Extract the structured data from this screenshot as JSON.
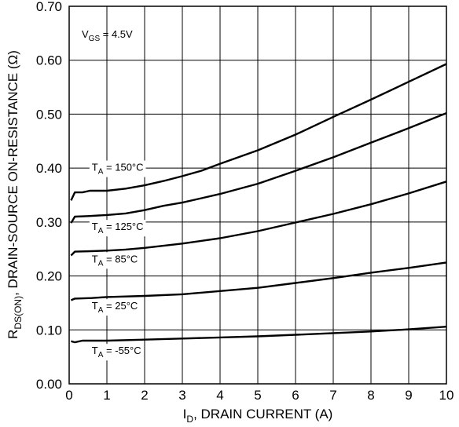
{
  "chart_data": {
    "type": "line",
    "xlabel": {
      "main": "I",
      "sub": "D",
      "rest": ", DRAIN CURRENT (A)"
    },
    "ylabel": {
      "main": "R",
      "sub": "DS(ON)",
      "rest": ", DRAIN-SOURCE ON-RESISTANCE (Ω)"
    },
    "condition": {
      "main": "V",
      "sub": "GS",
      "rest": " = 4.5V"
    },
    "xlim": [
      0,
      10
    ],
    "ylim": [
      0,
      0.7
    ],
    "x_ticks": [
      "0",
      "1",
      "2",
      "3",
      "4",
      "5",
      "6",
      "7",
      "8",
      "9",
      "10"
    ],
    "y_ticks": [
      "0.00",
      "0.10",
      "0.20",
      "0.30",
      "0.40",
      "0.50",
      "0.60",
      "0.70"
    ],
    "grid": true,
    "series": [
      {
        "name": {
          "main": "T",
          "sub": "A",
          "rest": " = 150°C"
        },
        "label_at": [
          0.6,
          0.395
        ],
        "points": [
          [
            0.05,
            0.34
          ],
          [
            0.15,
            0.355
          ],
          [
            0.35,
            0.355
          ],
          [
            0.55,
            0.358
          ],
          [
            1,
            0.358
          ],
          [
            1.5,
            0.362
          ],
          [
            2,
            0.368
          ],
          [
            2.5,
            0.376
          ],
          [
            3,
            0.385
          ],
          [
            3.5,
            0.395
          ],
          [
            4,
            0.408
          ],
          [
            5,
            0.433
          ],
          [
            6,
            0.462
          ],
          [
            7,
            0.495
          ],
          [
            8,
            0.527
          ],
          [
            9,
            0.56
          ],
          [
            10,
            0.593
          ]
        ]
      },
      {
        "name": {
          "main": "T",
          "sub": "A",
          "rest": " = 125°C"
        },
        "label_at": [
          0.6,
          0.285
        ],
        "points": [
          [
            0.05,
            0.298
          ],
          [
            0.15,
            0.31
          ],
          [
            0.5,
            0.311
          ],
          [
            1,
            0.313
          ],
          [
            1.5,
            0.316
          ],
          [
            2,
            0.322
          ],
          [
            2.5,
            0.33
          ],
          [
            3,
            0.336
          ],
          [
            4,
            0.352
          ],
          [
            5,
            0.371
          ],
          [
            6,
            0.395
          ],
          [
            7,
            0.42
          ],
          [
            8,
            0.447
          ],
          [
            9,
            0.474
          ],
          [
            10,
            0.502
          ]
        ]
      },
      {
        "name": {
          "main": "T",
          "sub": "A",
          "rest": " = 85°C"
        },
        "label_at": [
          0.6,
          0.225
        ],
        "points": [
          [
            0.05,
            0.238
          ],
          [
            0.15,
            0.245
          ],
          [
            0.6,
            0.246
          ],
          [
            1,
            0.247
          ],
          [
            1.5,
            0.249
          ],
          [
            2,
            0.252
          ],
          [
            2.5,
            0.256
          ],
          [
            3,
            0.26
          ],
          [
            4,
            0.27
          ],
          [
            5,
            0.283
          ],
          [
            6,
            0.299
          ],
          [
            7,
            0.315
          ],
          [
            8,
            0.333
          ],
          [
            9,
            0.353
          ],
          [
            10,
            0.375
          ]
        ]
      },
      {
        "name": {
          "main": "T",
          "sub": "A",
          "rest": " = 25°C"
        },
        "label_at": [
          0.6,
          0.138
        ],
        "points": [
          [
            0.05,
            0.155
          ],
          [
            0.15,
            0.158
          ],
          [
            0.6,
            0.159
          ],
          [
            1,
            0.161
          ],
          [
            2,
            0.163
          ],
          [
            3,
            0.166
          ],
          [
            4,
            0.172
          ],
          [
            5,
            0.178
          ],
          [
            6,
            0.187
          ],
          [
            7,
            0.196
          ],
          [
            8,
            0.206
          ],
          [
            9,
            0.215
          ],
          [
            10,
            0.225
          ]
        ]
      },
      {
        "name": {
          "main": "T",
          "sub": "A",
          "rest": " = -55°C"
        },
        "label_at": [
          0.6,
          0.055
        ],
        "points": [
          [
            0.05,
            0.079
          ],
          [
            0.15,
            0.077
          ],
          [
            0.35,
            0.08
          ],
          [
            1,
            0.08
          ],
          [
            2,
            0.082
          ],
          [
            3,
            0.084
          ],
          [
            4,
            0.086
          ],
          [
            5,
            0.088
          ],
          [
            6,
            0.091
          ],
          [
            7,
            0.094
          ],
          [
            8,
            0.097
          ],
          [
            9,
            0.101
          ],
          [
            10,
            0.106
          ]
        ]
      }
    ]
  }
}
